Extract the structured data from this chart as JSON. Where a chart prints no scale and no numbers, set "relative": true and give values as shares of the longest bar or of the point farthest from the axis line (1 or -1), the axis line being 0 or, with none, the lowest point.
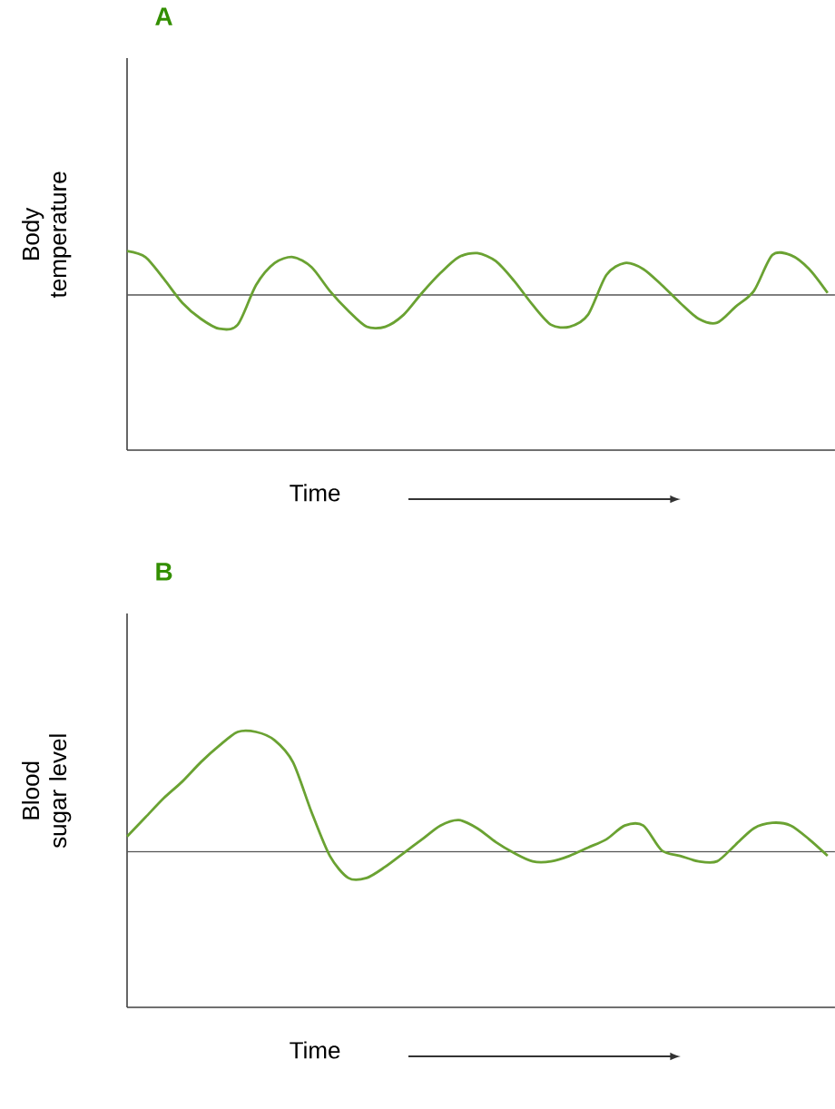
{
  "chart_data": [
    {
      "type": "line",
      "title": "A",
      "xlabel": "Time",
      "ylabel": "Body temperature",
      "relative": true,
      "categories": [
        null,
        null,
        null,
        null,
        null,
        null,
        null,
        null,
        null,
        null,
        null,
        null,
        null,
        null,
        null,
        null,
        null,
        null,
        null,
        null,
        null,
        null,
        null,
        null,
        null,
        null,
        null,
        null,
        null,
        null,
        null,
        null,
        null,
        null,
        null,
        null,
        null,
        null,
        null
      ],
      "series": [
        {
          "color": "#6aa232",
          "values": [
            1.0,
            0.97,
            0.86,
            0.74,
            0.66,
            0.61,
            0.63,
            0.83,
            0.94,
            0.97,
            0.92,
            0.8,
            0.7,
            0.62,
            0.62,
            0.68,
            0.79,
            0.89,
            0.97,
            0.99,
            0.95,
            0.85,
            0.73,
            0.63,
            0.62,
            0.68,
            0.88,
            0.94,
            0.91,
            0.83,
            0.74,
            0.66,
            0.64,
            0.72,
            0.8,
            0.98,
            0.98,
            0.91,
            0.79
          ]
        }
      ],
      "ref_lines": [
        {
          "axis": "y",
          "value": 0.78,
          "color": "#555555"
        }
      ]
    },
    {
      "type": "line",
      "title": "B",
      "xlabel": "Time",
      "ylabel": "Blood sugar level",
      "relative": true,
      "categories": [
        null,
        null,
        null,
        null,
        null,
        null,
        null,
        null,
        null,
        null,
        null,
        null,
        null,
        null,
        null,
        null,
        null,
        null,
        null,
        null,
        null,
        null,
        null,
        null,
        null,
        null,
        null,
        null,
        null,
        null,
        null,
        null,
        null,
        null,
        null,
        null,
        null,
        null,
        null
      ],
      "series": [
        {
          "color": "#6aa232",
          "values": [
            0.62,
            0.69,
            0.76,
            0.82,
            0.89,
            0.95,
            1.0,
            1.0,
            0.97,
            0.89,
            0.71,
            0.55,
            0.47,
            0.47,
            0.51,
            0.56,
            0.61,
            0.66,
            0.68,
            0.65,
            0.6,
            0.56,
            0.53,
            0.53,
            0.55,
            0.58,
            0.61,
            0.66,
            0.66,
            0.57,
            0.55,
            0.53,
            0.53,
            0.59,
            0.65,
            0.67,
            0.66,
            0.61,
            0.55
          ]
        }
      ],
      "ref_lines": [
        {
          "axis": "y",
          "value": 0.565,
          "color": "#555555"
        }
      ]
    }
  ]
}
